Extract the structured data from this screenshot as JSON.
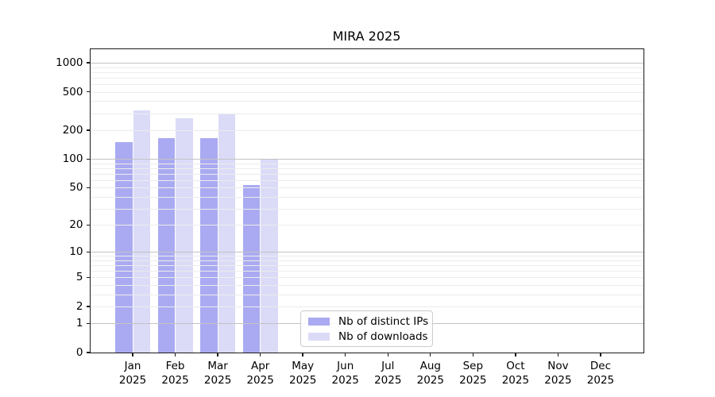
{
  "title": "MIRA 2025",
  "chart_data": {
    "type": "bar",
    "title": "MIRA 2025",
    "categories": [
      "Jan 2025",
      "Feb 2025",
      "Mar 2025",
      "Apr 2025",
      "May 2025",
      "Jun 2025",
      "Jul 2025",
      "Aug 2025",
      "Sep 2025",
      "Oct 2025",
      "Nov 2025",
      "Dec 2025"
    ],
    "series": [
      {
        "name": "Nb of distinct IPs",
        "color": "#aaaaf2",
        "values": [
          150,
          165,
          165,
          53,
          null,
          null,
          null,
          null,
          null,
          null,
          null,
          null
        ]
      },
      {
        "name": "Nb of downloads",
        "color": "#dbdbf8",
        "values": [
          320,
          265,
          300,
          100,
          null,
          null,
          null,
          null,
          null,
          null,
          null,
          null
        ]
      }
    ],
    "yscale": "log10(1+value)",
    "ylim": [
      0,
      1385
    ],
    "yticks": [
      1000,
      500,
      200,
      100,
      50,
      20,
      10,
      5,
      2,
      1,
      0
    ],
    "major_gridlines": [
      1,
      10,
      100,
      1000
    ],
    "minor_gridlines": [
      2,
      3,
      4,
      5,
      6,
      7,
      8,
      9,
      20,
      30,
      40,
      50,
      60,
      70,
      80,
      90,
      200,
      300,
      400,
      500,
      600,
      700,
      800,
      900
    ],
    "grid": "horizontal, drawn over bars",
    "legend_position": "lower center, inside axes",
    "xlabel": "",
    "ylabel": ""
  },
  "legend": {
    "items": [
      {
        "label": "Nb of distinct IPs",
        "color": "#aaaaf2"
      },
      {
        "label": "Nb of downloads",
        "color": "#dbdbf8"
      }
    ]
  },
  "colors": {
    "background": "#ffffff",
    "axis_border": "#1a1a1a",
    "major_grid": "#c3c3c3",
    "minor_grid": "#ececec",
    "text": "#000000",
    "legend_border": "#cccccc"
  }
}
